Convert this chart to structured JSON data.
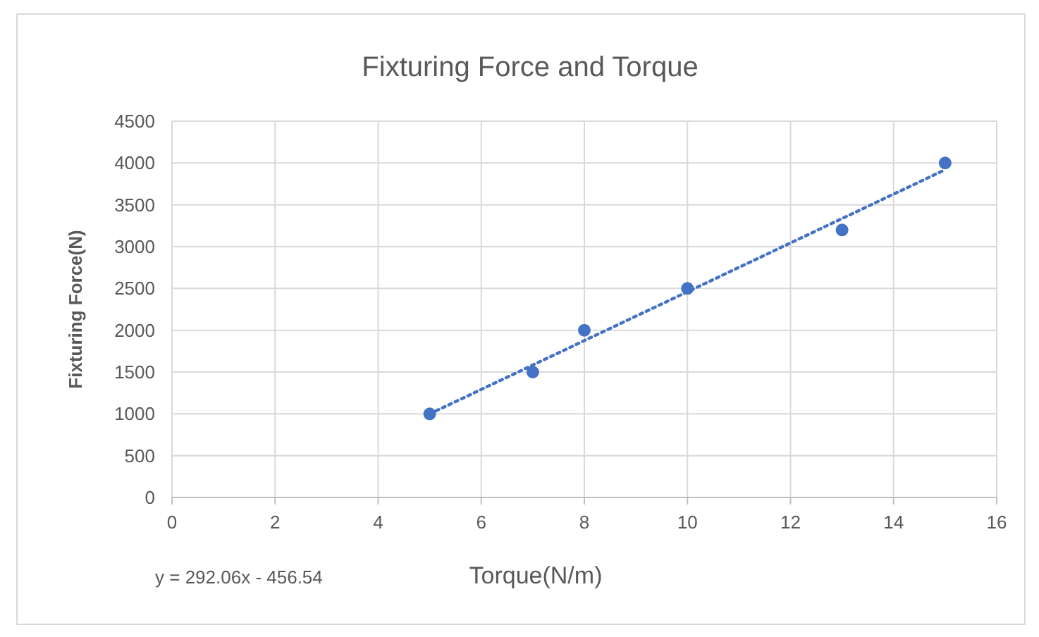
{
  "chart_data": {
    "type": "scatter",
    "title": "Fixturing Force and Torque",
    "xlabel": "Torque(N/m)",
    "ylabel": "Fixturing Force(N)",
    "xlim": [
      0,
      16
    ],
    "xticks": [
      0,
      2,
      4,
      6,
      8,
      10,
      12,
      14,
      16
    ],
    "ylim": [
      0,
      4500
    ],
    "yticks": [
      0,
      500,
      1000,
      1500,
      2000,
      2500,
      3000,
      3500,
      4000,
      4500
    ],
    "grid": true,
    "marker": "circle",
    "x": [
      5,
      7,
      8,
      10,
      13,
      15
    ],
    "series": [
      {
        "color": "#4472c4",
        "values": [
          1000,
          1500,
          2000,
          2500,
          3200,
          4000
        ]
      },
      {
        "type": "line",
        "color": "#4472c4",
        "x": [
          5,
          15
        ],
        "values": [
          1000,
          3920
        ],
        "line_style": "dotted",
        "marker": "none"
      }
    ],
    "annotations": [
      "y = 292.06x - 456.54"
    ]
  }
}
